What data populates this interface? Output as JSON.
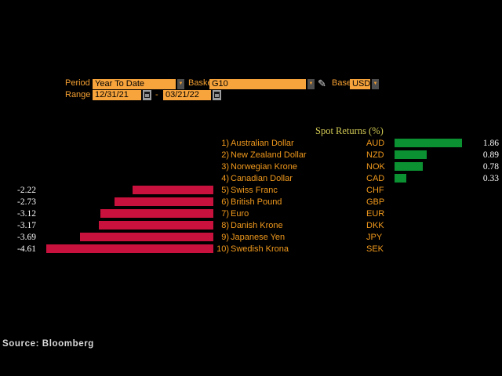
{
  "controls": {
    "period_label": "Period",
    "period_value": "Year To Date",
    "basket_label": "Basket",
    "basket_value": "G10",
    "base_label": "Base",
    "base_value": "USD",
    "range_label": "Range",
    "range_start": "12/31/21",
    "range_separator": "-",
    "range_end": "03/21/22",
    "dropdown_arrow": "▼",
    "pencil_icon": "✎"
  },
  "source": "Source:  Bloomberg",
  "chart_data": {
    "type": "bar",
    "orientation": "horizontal",
    "title": "Spot Returns (%)",
    "rank_labels": [
      "1)",
      "2)",
      "3)",
      "4)",
      "5)",
      "6)",
      "7)",
      "8)",
      "9)",
      "10)"
    ],
    "categories": [
      "Australian Dollar",
      "New Zealand Dollar",
      "Norwegian Krone",
      "Canadian Dollar",
      "Swiss Franc",
      "British Pound",
      "Euro",
      "Danish Krone",
      "Japanese Yen",
      "Swedish Krona"
    ],
    "tickers": [
      "AUD",
      "NZD",
      "NOK",
      "CAD",
      "CHF",
      "GBP",
      "EUR",
      "DKK",
      "JPY",
      "SEK"
    ],
    "values": [
      1.86,
      0.89,
      0.78,
      0.33,
      -2.22,
      -2.73,
      -3.12,
      -3.17,
      -3.69,
      -4.61
    ],
    "value_labels": [
      "1.86",
      "0.89",
      "0.78",
      "0.33",
      "-2.22",
      "-2.73",
      "-3.12",
      "-3.17",
      "-3.69",
      "-4.61"
    ],
    "base_currency": "USD",
    "positive_color": "#0c9132",
    "negative_color": "#c8113c",
    "xlim": [
      -5.0,
      2.0
    ],
    "grid": "off",
    "legend": "none"
  }
}
